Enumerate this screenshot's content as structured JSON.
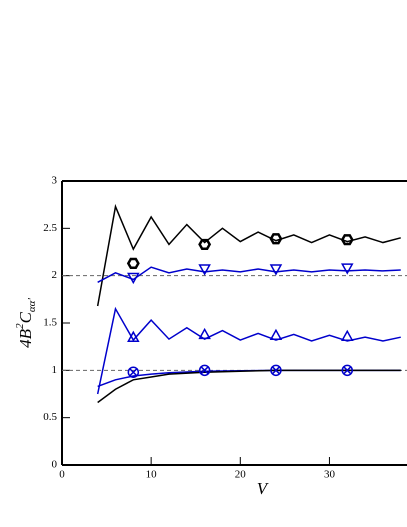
{
  "chart_data": {
    "type": "line",
    "xlabel": "V",
    "ylabel": [
      "4B",
      "2",
      "C",
      "αα'"
    ],
    "xlim": [
      0,
      38.7
    ],
    "ylim": [
      0,
      3
    ],
    "xticks": [
      0,
      10,
      20,
      30
    ],
    "yticks": [
      0,
      0.5,
      1,
      1.5,
      2,
      2.5,
      3
    ],
    "hlines": [
      1,
      2
    ],
    "series": [
      {
        "color": "#000000",
        "x": [
          4,
          6,
          8,
          10,
          12,
          14,
          16,
          18,
          20,
          22,
          24,
          26,
          28,
          30,
          32,
          34,
          36,
          38
        ],
        "values": [
          1.68,
          2.73,
          2.28,
          2.62,
          2.33,
          2.54,
          2.35,
          2.5,
          2.36,
          2.46,
          2.37,
          2.43,
          2.35,
          2.43,
          2.36,
          2.41,
          2.35,
          2.4
        ]
      },
      {
        "color": "#0000cc",
        "x": [
          4,
          6,
          8,
          10,
          12,
          14,
          16,
          18,
          20,
          22,
          24,
          26,
          28,
          30,
          32,
          34,
          36,
          38
        ],
        "values": [
          1.93,
          2.03,
          1.96,
          2.09,
          2.03,
          2.07,
          2.04,
          2.06,
          2.04,
          2.07,
          2.04,
          2.06,
          2.04,
          2.06,
          2.05,
          2.06,
          2.05,
          2.06
        ]
      },
      {
        "color": "#0000cc",
        "x": [
          4,
          6,
          8,
          10,
          12,
          14,
          16,
          18,
          20,
          22,
          24,
          26,
          28,
          30,
          32,
          34,
          36,
          38
        ],
        "values": [
          0.75,
          1.65,
          1.32,
          1.53,
          1.33,
          1.45,
          1.33,
          1.42,
          1.32,
          1.39,
          1.32,
          1.38,
          1.31,
          1.37,
          1.31,
          1.35,
          1.31,
          1.35
        ]
      },
      {
        "color": "#0000cc",
        "x": [
          4,
          6,
          8,
          10,
          12,
          16,
          20,
          24,
          30,
          38
        ],
        "values": [
          0.83,
          0.9,
          0.94,
          0.96,
          0.975,
          0.99,
          0.995,
          1,
          1,
          1
        ]
      },
      {
        "color": "#000000",
        "x": [
          4,
          6,
          8,
          10,
          12,
          16,
          20,
          24,
          30,
          38
        ],
        "values": [
          0.66,
          0.8,
          0.9,
          0.93,
          0.96,
          0.98,
          0.99,
          1,
          1,
          1
        ]
      },
      {
        "color": "#000000",
        "marker": "hexagon",
        "x": [
          8,
          16,
          24,
          32
        ],
        "values": [
          2.13,
          2.33,
          2.39,
          2.38
        ]
      },
      {
        "color": "#0000cc",
        "marker": "triangle-down",
        "x": [
          8,
          16,
          24,
          32
        ],
        "values": [
          1.98,
          2.07,
          2.07,
          2.08
        ]
      },
      {
        "color": "#0000cc",
        "marker": "triangle-up",
        "x": [
          8,
          16,
          24,
          32
        ],
        "values": [
          1.35,
          1.38,
          1.37,
          1.36
        ]
      },
      {
        "color": "#0000cc",
        "marker": "circle-x",
        "x": [
          8,
          16,
          24,
          32
        ],
        "values": [
          0.98,
          1,
          1,
          1
        ]
      }
    ]
  }
}
